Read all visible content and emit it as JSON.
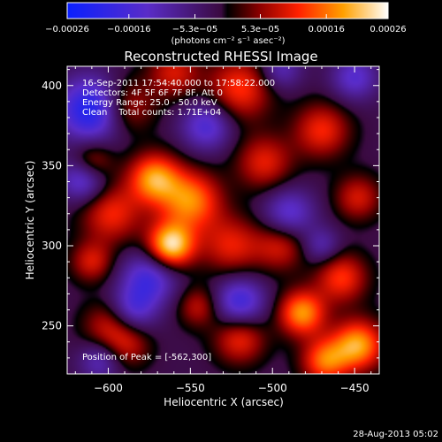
{
  "chart_data": {
    "type": "heatmap",
    "title": "Reconstructed RHESSI Image",
    "xlabel": "Heliocentric X (arcsec)",
    "ylabel": "Heliocentric Y (arcsec)",
    "xlim": [
      -625,
      -435
    ],
    "ylim": [
      220,
      412
    ],
    "x_ticks": [
      -600,
      -550,
      -500,
      -450
    ],
    "y_ticks": [
      250,
      300,
      350,
      400
    ],
    "colorbar": {
      "range": [
        -0.00026,
        0.00026
      ],
      "tick_values": [
        -0.00026,
        -0.00016,
        -5.3e-05,
        5.3e-05,
        0.00016,
        0.00026
      ],
      "tick_labels": [
        "-0.00026",
        "-0.00016",
        "-5.3e-05",
        "5.3e-05",
        "0.00016",
        "0.00026"
      ],
      "unit_label": "(photons cm⁻² s⁻¹ asec⁻²)"
    },
    "annotations": {
      "time_range": "16-Sep-2011 17:54:40.000 to 17:58:22.000",
      "detectors": "Detectors: 4F 5F 6F 7F 8F, Att 0",
      "energy": "Energy Range: 25.0 - 50.0 keV",
      "clean": "Clean    Total counts: 1.71E+04",
      "peak": "Position of Peak = [-562,300]"
    },
    "sources": [
      {
        "x": -562,
        "y": 300,
        "r": 10,
        "amp": 0.00026
      },
      {
        "x": -550,
        "y": 328,
        "r": 13,
        "amp": 0.00019
      },
      {
        "x": -572,
        "y": 342,
        "r": 11,
        "amp": 0.0002
      },
      {
        "x": -598,
        "y": 320,
        "r": 13,
        "amp": 0.00013
      },
      {
        "x": -610,
        "y": 352,
        "r": 9,
        "amp": 0.00013
      },
      {
        "x": -590,
        "y": 387,
        "r": 12,
        "amp": 0.00012
      },
      {
        "x": -560,
        "y": 408,
        "r": 11,
        "amp": 0.00011
      },
      {
        "x": -520,
        "y": 398,
        "r": 14,
        "amp": 0.00014
      },
      {
        "x": -505,
        "y": 352,
        "r": 12,
        "amp": 0.00012
      },
      {
        "x": -525,
        "y": 300,
        "r": 13,
        "amp": 0.00012
      },
      {
        "x": -495,
        "y": 300,
        "r": 11,
        "amp": 0.00011
      },
      {
        "x": -470,
        "y": 372,
        "r": 12,
        "amp": 0.00013
      },
      {
        "x": -448,
        "y": 330,
        "r": 10,
        "amp": 0.00011
      },
      {
        "x": -458,
        "y": 280,
        "r": 11,
        "amp": 0.00014
      },
      {
        "x": -482,
        "y": 258,
        "r": 10,
        "amp": 0.0002
      },
      {
        "x": -448,
        "y": 238,
        "r": 11,
        "amp": 0.00021
      },
      {
        "x": -468,
        "y": 228,
        "r": 10,
        "amp": 0.00017
      },
      {
        "x": -520,
        "y": 242,
        "r": 11,
        "amp": 0.00013
      },
      {
        "x": -545,
        "y": 262,
        "r": 9,
        "amp": 0.0001
      },
      {
        "x": -600,
        "y": 250,
        "r": 11,
        "amp": 0.0001
      },
      {
        "x": -610,
        "y": 290,
        "r": 9,
        "amp": 0.00011
      },
      {
        "x": -588,
        "y": 238,
        "r": 10,
        "amp": 9e-05
      },
      {
        "x": -610,
        "y": 385,
        "r": 14,
        "amp": -0.00022
      },
      {
        "x": -615,
        "y": 342,
        "r": 10,
        "amp": -0.00016
      },
      {
        "x": -575,
        "y": 280,
        "r": 12,
        "amp": -0.00015
      },
      {
        "x": -540,
        "y": 375,
        "r": 11,
        "amp": -0.00014
      },
      {
        "x": -585,
        "y": 260,
        "r": 10,
        "amp": -0.00012
      },
      {
        "x": -520,
        "y": 265,
        "r": 11,
        "amp": -0.00016
      },
      {
        "x": -490,
        "y": 320,
        "r": 11,
        "amp": -0.00013
      },
      {
        "x": -450,
        "y": 405,
        "r": 10,
        "amp": -0.00012
      },
      {
        "x": -495,
        "y": 410,
        "r": 9,
        "amp": -0.0001
      },
      {
        "x": -470,
        "y": 300,
        "r": 8,
        "amp": -9e-05
      },
      {
        "x": -605,
        "y": 228,
        "r": 9,
        "amp": -0.0001
      }
    ]
  },
  "footer": {
    "timestamp": "28-Aug-2013 05:02"
  }
}
